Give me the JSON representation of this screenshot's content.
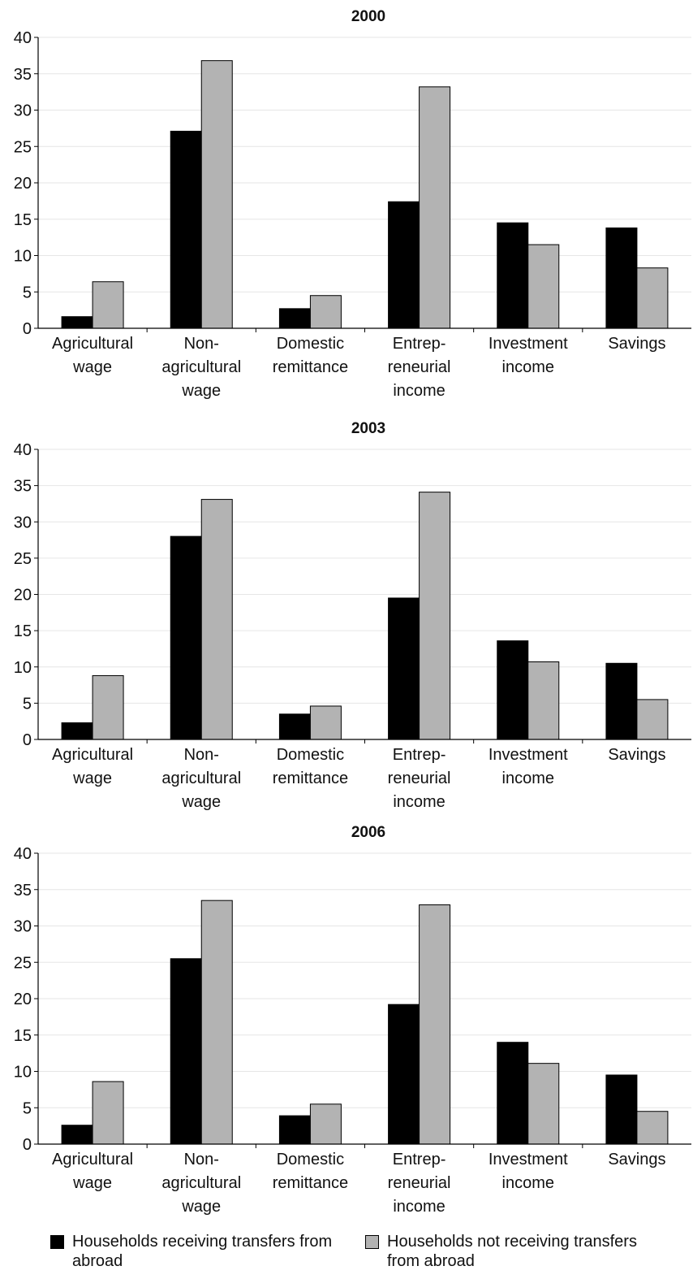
{
  "chart_data": [
    {
      "type": "bar",
      "title": "2000",
      "categories": [
        [
          "Agricultural",
          "wage"
        ],
        [
          "Non-",
          "agricultural",
          "wage"
        ],
        [
          "Domestic",
          "remittance"
        ],
        [
          "Entrep-",
          "reneurial",
          "income"
        ],
        [
          "Investment",
          "income"
        ],
        [
          "Savings"
        ]
      ],
      "series": [
        {
          "name": "Households receiving transfers from abroad",
          "values": [
            1.6,
            27.1,
            2.7,
            17.4,
            14.5,
            13.8
          ]
        },
        {
          "name": "Households not receiving transfers from abroad",
          "values": [
            6.4,
            36.8,
            4.5,
            33.2,
            11.5,
            8.3
          ]
        }
      ],
      "ylim": [
        0,
        40
      ],
      "yticks": [
        0,
        5,
        10,
        15,
        20,
        25,
        30,
        35,
        40
      ],
      "grid": true
    },
    {
      "type": "bar",
      "title": "2003",
      "categories": [
        [
          "Agricultural",
          "wage"
        ],
        [
          "Non-",
          "agricultural",
          "wage"
        ],
        [
          "Domestic",
          "remittance"
        ],
        [
          "Entrep-",
          "reneurial",
          "income"
        ],
        [
          "Investment",
          "income"
        ],
        [
          "Savings"
        ]
      ],
      "series": [
        {
          "name": "Households receiving transfers from abroad",
          "values": [
            2.3,
            28.0,
            3.5,
            19.5,
            13.6,
            10.5
          ]
        },
        {
          "name": "Households not receiving transfers from abroad",
          "values": [
            8.8,
            33.1,
            4.6,
            34.1,
            10.7,
            5.5
          ]
        }
      ],
      "ylim": [
        0,
        40
      ],
      "yticks": [
        0,
        5,
        10,
        15,
        20,
        25,
        30,
        35,
        40
      ],
      "grid": true
    },
    {
      "type": "bar",
      "title": "2006",
      "categories": [
        [
          "Agricultural",
          "wage"
        ],
        [
          "Non-",
          "agricultural",
          "wage"
        ],
        [
          "Domestic",
          "remittance"
        ],
        [
          "Entrep-",
          "reneurial",
          "income"
        ],
        [
          "Investment",
          "income"
        ],
        [
          "Savings"
        ]
      ],
      "series": [
        {
          "name": "Households receiving transfers from abroad",
          "values": [
            2.6,
            25.5,
            3.9,
            19.2,
            14.0,
            9.5
          ]
        },
        {
          "name": "Households not receiving transfers from abroad",
          "values": [
            8.6,
            33.5,
            5.5,
            32.9,
            11.1,
            4.5
          ]
        }
      ],
      "ylim": [
        0,
        40
      ],
      "yticks": [
        0,
        5,
        10,
        15,
        20,
        25,
        30,
        35,
        40
      ],
      "grid": true
    }
  ],
  "legend": {
    "items": [
      {
        "label": "Households receiving transfers from abroad",
        "color": "#000000"
      },
      {
        "label": "Households not receiving transfers from abroad",
        "color": "#b3b3b3"
      }
    ]
  },
  "colors": {
    "series": [
      "#000000",
      "#b3b3b3"
    ],
    "grid": "#e6e6e6",
    "axis": "#000000"
  }
}
